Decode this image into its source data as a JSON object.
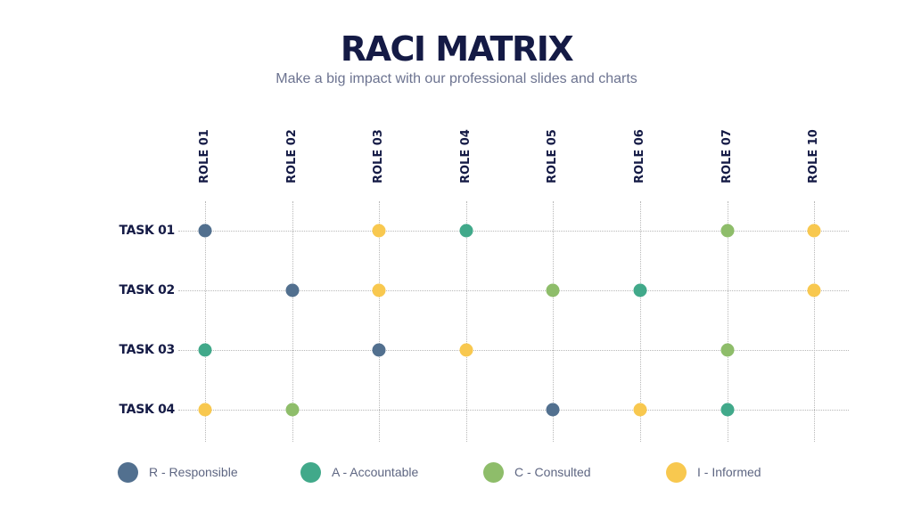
{
  "header": {
    "title": "RACI MATRIX",
    "subtitle": "Make a big impact with our professional slides and charts"
  },
  "colors": {
    "R": "#52708f",
    "A": "#41a98a",
    "C": "#8ebd6a",
    "I": "#f8c84f",
    "text_dark": "#141a45",
    "text_muted": "#6c7390",
    "grid": "#b8b8b8"
  },
  "roles": [
    "ROLE 01",
    "ROLE 02",
    "ROLE 03",
    "ROLE 04",
    "ROLE 05",
    "ROLE 06",
    "ROLE 07",
    "ROLE 10"
  ],
  "tasks": [
    "TASK 01",
    "TASK 02",
    "TASK 03",
    "TASK 04"
  ],
  "matrix": [
    [
      "R",
      "",
      "I",
      "A",
      "",
      "",
      "C",
      "I"
    ],
    [
      "",
      "R",
      "I",
      "",
      "C",
      "A",
      "",
      "I"
    ],
    [
      "A",
      "",
      "R",
      "I",
      "",
      "",
      "C",
      ""
    ],
    [
      "I",
      "C",
      "",
      "",
      "R",
      "I",
      "A",
      ""
    ]
  ],
  "legend": [
    {
      "key": "R",
      "label": "R - Responsible"
    },
    {
      "key": "A",
      "label": "A - Accountable"
    },
    {
      "key": "C",
      "label": "C - Consulted"
    },
    {
      "key": "I",
      "label": "I - Informed"
    }
  ]
}
